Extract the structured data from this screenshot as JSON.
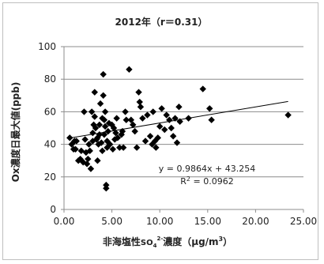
{
  "chart_data": {
    "type": "scatter",
    "title": "2012年（r＝0.31）",
    "ylabel": "Ox濃度日最大値(ppb)",
    "xlabel_parts": {
      "pre": "非海塩性",
      "chem": "SO",
      "sub": "4",
      "sup": "2-",
      "post": "濃度（μg/m",
      "exp": "3",
      "close": "）"
    },
    "xlim": [
      0,
      25
    ],
    "ylim": [
      0,
      100
    ],
    "x_ticks": [
      "0.00",
      "5.00",
      "10.00",
      "15.00",
      "20.00",
      "25.00"
    ],
    "y_ticks": [
      "0",
      "20",
      "40",
      "60",
      "80",
      "100"
    ],
    "grid": "horizontal",
    "marker": "diamond",
    "color": "#000000",
    "trendline": {
      "slope": 0.9864,
      "intercept": 43.254,
      "x_range": [
        0.6,
        23.4
      ]
    },
    "annotations": {
      "equation": "y = 0.9864x + 43.254",
      "r2_base": "R",
      "r2_sup": "2",
      "r2_value": " = 0.0962"
    },
    "points": [
      [
        0.6,
        44
      ],
      [
        0.8,
        40
      ],
      [
        1.0,
        37
      ],
      [
        1.1,
        42
      ],
      [
        1.2,
        37
      ],
      [
        1.3,
        42
      ],
      [
        1.5,
        30
      ],
      [
        1.7,
        31
      ],
      [
        1.8,
        36
      ],
      [
        2.0,
        29
      ],
      [
        2.1,
        60
      ],
      [
        2.2,
        43
      ],
      [
        2.3,
        35
      ],
      [
        2.4,
        28
      ],
      [
        2.5,
        31
      ],
      [
        2.6,
        40
      ],
      [
        2.7,
        36
      ],
      [
        2.8,
        25
      ],
      [
        2.9,
        60
      ],
      [
        3.0,
        42
      ],
      [
        3.0,
        47
      ],
      [
        3.1,
        52
      ],
      [
        3.2,
        72
      ],
      [
        3.2,
        57
      ],
      [
        3.3,
        50
      ],
      [
        3.4,
        43
      ],
      [
        3.5,
        44
      ],
      [
        3.5,
        30
      ],
      [
        3.6,
        40
      ],
      [
        3.7,
        52
      ],
      [
        3.7,
        46
      ],
      [
        3.8,
        65
      ],
      [
        3.9,
        41
      ],
      [
        4.0,
        56
      ],
      [
        4.0,
        36
      ],
      [
        4.1,
        83
      ],
      [
        4.1,
        70
      ],
      [
        4.2,
        55
      ],
      [
        4.2,
        46
      ],
      [
        4.3,
        60
      ],
      [
        4.3,
        51
      ],
      [
        4.4,
        15
      ],
      [
        4.4,
        13
      ],
      [
        4.5,
        42
      ],
      [
        4.5,
        38
      ],
      [
        4.6,
        48
      ],
      [
        4.7,
        53
      ],
      [
        4.8,
        40
      ],
      [
        5.0,
        52
      ],
      [
        5.1,
        37
      ],
      [
        5.2,
        50
      ],
      [
        5.3,
        43
      ],
      [
        5.4,
        47
      ],
      [
        5.5,
        56
      ],
      [
        5.6,
        44
      ],
      [
        5.8,
        38
      ],
      [
        6.0,
        46
      ],
      [
        6.1,
        48
      ],
      [
        6.2,
        38
      ],
      [
        6.4,
        60
      ],
      [
        6.5,
        55
      ],
      [
        6.8,
        86
      ],
      [
        7.0,
        55
      ],
      [
        7.2,
        52
      ],
      [
        7.4,
        48
      ],
      [
        7.6,
        38
      ],
      [
        7.8,
        72
      ],
      [
        7.9,
        66
      ],
      [
        8.0,
        63
      ],
      [
        8.2,
        56
      ],
      [
        8.5,
        42
      ],
      [
        8.7,
        58
      ],
      [
        9.0,
        45
      ],
      [
        9.2,
        40
      ],
      [
        9.3,
        60
      ],
      [
        9.5,
        42
      ],
      [
        9.6,
        38
      ],
      [
        9.8,
        44
      ],
      [
        10.0,
        51
      ],
      [
        10.2,
        62
      ],
      [
        10.5,
        49
      ],
      [
        10.7,
        58
      ],
      [
        11.0,
        55
      ],
      [
        11.2,
        50
      ],
      [
        11.4,
        45
      ],
      [
        11.6,
        56
      ],
      [
        11.8,
        41
      ],
      [
        12.0,
        63
      ],
      [
        12.1,
        54
      ],
      [
        13.0,
        56
      ],
      [
        14.5,
        74
      ],
      [
        15.2,
        62
      ],
      [
        15.4,
        55
      ],
      [
        23.4,
        58
      ]
    ]
  }
}
